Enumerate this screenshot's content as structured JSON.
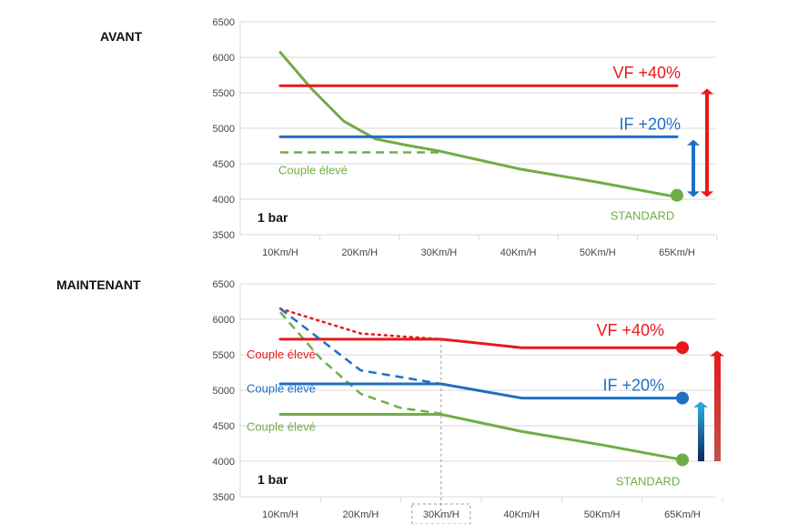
{
  "titles": {
    "top": "AVANT",
    "bottom": "MAINTENANT"
  },
  "colors": {
    "green": "#70ad47",
    "red": "#e8191c",
    "blue": "#1f6fc4",
    "grid": "#d9d9d9",
    "axisText": "#444444"
  },
  "chart_data": [
    {
      "type": "line",
      "title": "AVANT",
      "categories": [
        "10Km/H",
        "20Km/H",
        "30Km/H",
        "40Km/H",
        "50Km/H",
        "65Km/H"
      ],
      "ylim": [
        3500,
        6500
      ],
      "yticks": [
        "3500",
        "4000",
        "4500",
        "5000",
        "5500",
        "6000",
        "6500"
      ],
      "grid": "horizontal",
      "annotations": {
        "pressure": "1 bar",
        "vf": "VF +40%",
        "if": "IF +20%",
        "standard": "STANDARD",
        "couple": "Couple élevé"
      },
      "series": [
        {
          "key": "standard",
          "style": "solid",
          "color": "#70ad47",
          "points": [
            [
              0,
              6070
            ],
            [
              0.4,
              5550
            ],
            [
              0.8,
              5100
            ],
            [
              1.2,
              4850
            ],
            [
              1.6,
              4760
            ],
            [
              2,
              4680
            ],
            [
              3,
              4430
            ],
            [
              4,
              4240
            ],
            [
              5,
              4030
            ]
          ]
        },
        {
          "key": "couple",
          "style": "dashed",
          "color": "#70ad47",
          "points": [
            [
              0,
              4660
            ],
            [
              2,
              4660
            ]
          ]
        },
        {
          "key": "vf",
          "style": "solid",
          "color": "#e8191c",
          "points": [
            [
              0,
              5600
            ],
            [
              5,
              5600
            ]
          ]
        },
        {
          "key": "if",
          "style": "solid",
          "color": "#1f6fc4",
          "points": [
            [
              0,
              4880
            ],
            [
              5,
              4880
            ]
          ]
        }
      ]
    },
    {
      "type": "line",
      "title": "MAINTENANT",
      "categories": [
        "10Km/H",
        "20Km/H",
        "30Km/H",
        "40Km/H",
        "50Km/H",
        "65Km/H"
      ],
      "ylim": [
        3500,
        6500
      ],
      "yticks": [
        "3500",
        "4000",
        "4500",
        "5000",
        "5500",
        "6000",
        "6500"
      ],
      "grid": "horizontal",
      "highlight_category": "30Km/H",
      "annotations": {
        "pressure": "1 bar",
        "vf": "VF +40%",
        "if": "IF +20%",
        "standard": "STANDARD",
        "couple_red": "Couple élevé",
        "couple_blue": "Couple élevé",
        "couple_green": "Couple élevé"
      },
      "series": [
        {
          "key": "standard",
          "style": "solid",
          "color": "#70ad47",
          "points": [
            [
              0,
              4660
            ],
            [
              2,
              4660
            ],
            [
              3,
              4420
            ],
            [
              4,
              4230
            ],
            [
              5,
              4020
            ]
          ]
        },
        {
          "key": "green-dashed",
          "style": "dashed",
          "color": "#70ad47",
          "points": [
            [
              0,
              6100
            ],
            [
              0.5,
              5450
            ],
            [
              1,
              4950
            ],
            [
              1.5,
              4750
            ],
            [
              2,
              4670
            ]
          ]
        },
        {
          "key": "vf",
          "style": "solid",
          "color": "#e8191c",
          "points": [
            [
              0,
              5720
            ],
            [
              2,
              5720
            ],
            [
              3,
              5600
            ],
            [
              5,
              5600
            ]
          ]
        },
        {
          "key": "red-dotted",
          "style": "dotted",
          "color": "#e8191c",
          "points": [
            [
              0,
              6150
            ],
            [
              1,
              5800
            ],
            [
              2,
              5720
            ]
          ]
        },
        {
          "key": "if",
          "style": "solid",
          "color": "#1f6fc4",
          "points": [
            [
              0,
              5090
            ],
            [
              2,
              5090
            ],
            [
              3,
              4890
            ],
            [
              5,
              4890
            ]
          ]
        },
        {
          "key": "blue-dashed",
          "style": "dashed",
          "color": "#1f6fc4",
          "points": [
            [
              0,
              6150
            ],
            [
              1,
              5280
            ],
            [
              2,
              5090
            ]
          ]
        }
      ]
    }
  ]
}
